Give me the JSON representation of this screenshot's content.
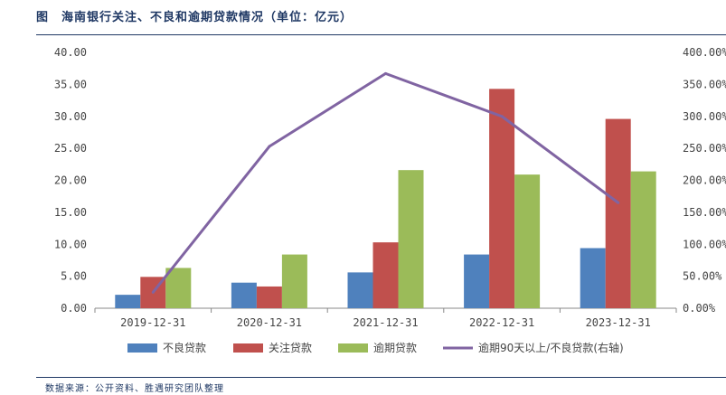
{
  "figure": {
    "title": "图　海南银行关注、不良和逾期贷款情况（单位：亿元）",
    "source": "数据来源：公开资料、胜遇研究团队整理"
  },
  "chart_data": {
    "type": "bar",
    "categories": [
      "2019-12-31",
      "2020-12-31",
      "2021-12-31",
      "2022-12-31",
      "2023-12-31"
    ],
    "series": [
      {
        "name": "不良贷款",
        "type": "bar",
        "axis": "left",
        "color": "#4f81bd",
        "values": [
          2.1,
          4.0,
          5.6,
          8.4,
          9.4
        ]
      },
      {
        "name": "关注贷款",
        "type": "bar",
        "axis": "left",
        "color": "#c0504d",
        "values": [
          4.9,
          3.4,
          10.3,
          34.3,
          29.6
        ]
      },
      {
        "name": "逾期贷款",
        "type": "bar",
        "axis": "left",
        "color": "#9bbb59",
        "values": [
          6.3,
          8.4,
          21.6,
          20.9,
          21.4
        ]
      },
      {
        "name": "逾期90天以上/不良贷款(右轴)",
        "type": "line",
        "axis": "right",
        "color": "#8064a2",
        "values": [
          25,
          253,
          367,
          300,
          165
        ]
      }
    ],
    "y_left": {
      "min": 0,
      "max": 40,
      "step": 5,
      "ticks": [
        "0.00",
        "5.00",
        "10.00",
        "15.00",
        "20.00",
        "25.00",
        "30.00",
        "35.00",
        "40.00"
      ]
    },
    "y_right": {
      "min": 0,
      "max": 400,
      "step": 50,
      "unit": "%",
      "ticks": [
        "0.00%",
        "50.00%",
        "100.00%",
        "150.00%",
        "200.00%",
        "250.00%",
        "300.00%",
        "350.00%",
        "400.00%"
      ]
    },
    "grid": false,
    "legend_position": "bottom"
  }
}
